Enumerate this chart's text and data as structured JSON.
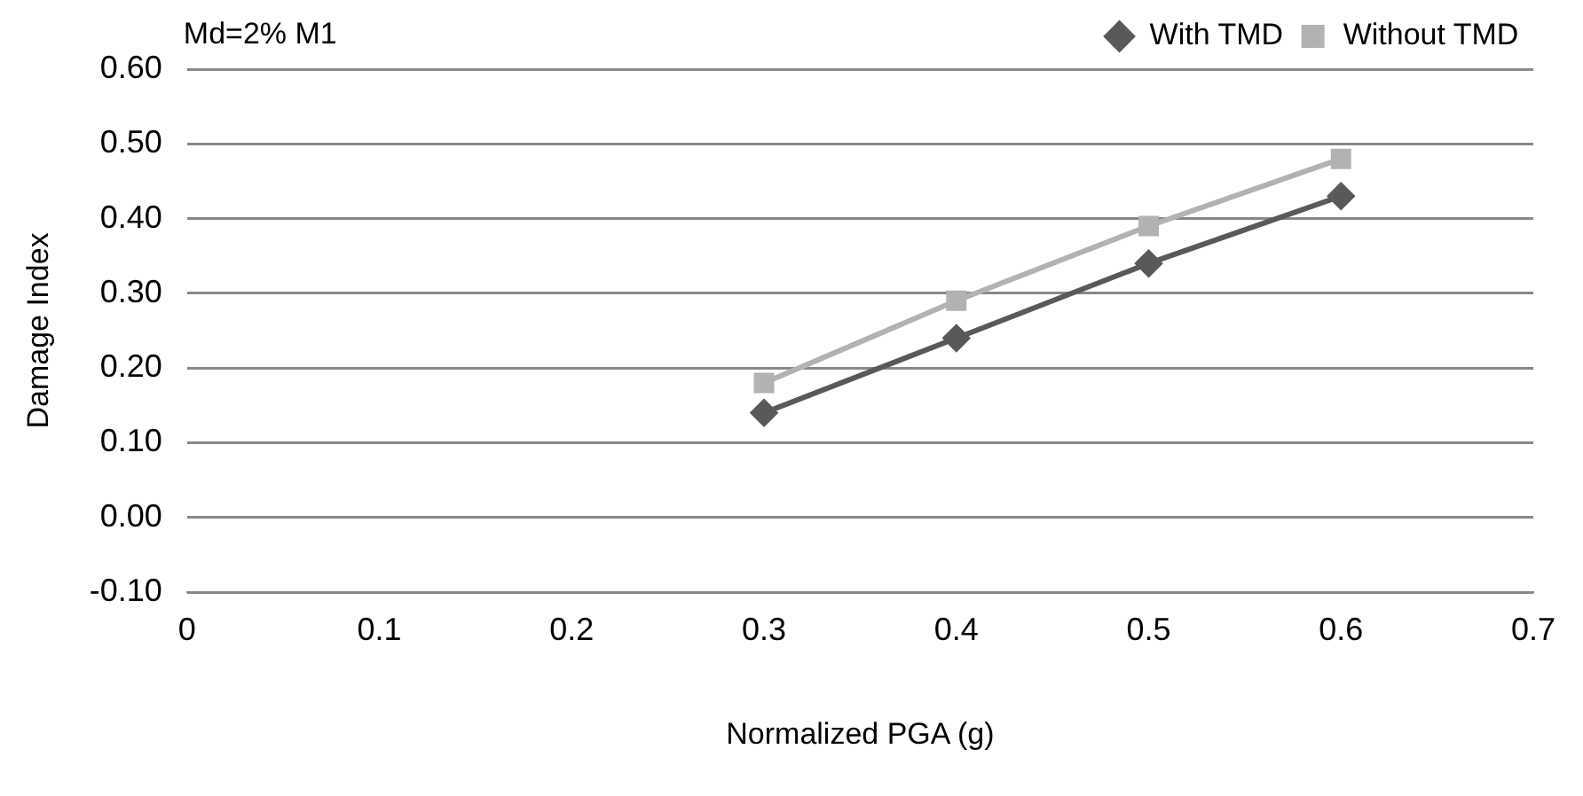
{
  "chart_data": {
    "type": "line",
    "title": "Md=2% M1",
    "xlabel": "Normalized PGA (g)",
    "ylabel": "Damage Index",
    "x": [
      0.3,
      0.4,
      0.5,
      0.6
    ],
    "series": [
      {
        "name": "With TMD",
        "color": "#595959",
        "marker": "diamond",
        "values": [
          0.14,
          0.24,
          0.34,
          0.43
        ]
      },
      {
        "name": "Without TMD",
        "color": "#b2b2b2",
        "marker": "square",
        "values": [
          0.18,
          0.29,
          0.39,
          0.48
        ]
      }
    ],
    "xlim": [
      0,
      0.7
    ],
    "xticks": [
      0,
      0.1,
      0.2,
      0.3,
      0.4,
      0.5,
      0.6,
      0.7
    ],
    "ylim": [
      -0.1,
      0.6
    ],
    "yticks": [
      {
        "value": -0.1,
        "label": "-0.10"
      },
      {
        "value": 0,
        "label": "0.00"
      },
      {
        "value": 0.1,
        "label": "0.10"
      },
      {
        "value": 0.2,
        "label": "0.20"
      },
      {
        "value": 0.3,
        "label": "0.30"
      },
      {
        "value": 0.4,
        "label": "0.40"
      },
      {
        "value": 0.5,
        "label": "0.50"
      },
      {
        "value": 0.6,
        "label": "0.60"
      }
    ],
    "grid": "y",
    "legend": "top right",
    "line_style": "solid"
  }
}
